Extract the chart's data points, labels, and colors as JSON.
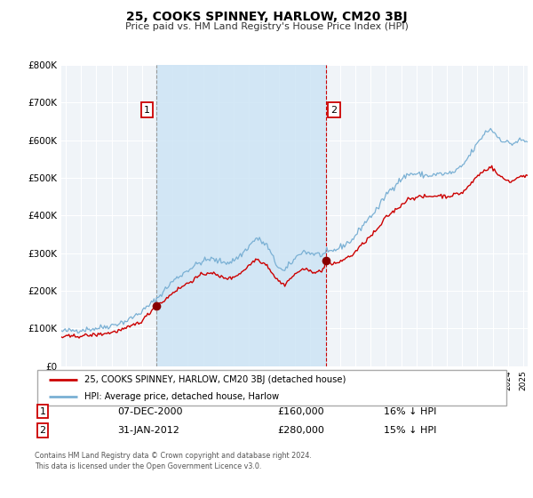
{
  "title": "25, COOKS SPINNEY, HARLOW, CM20 3BJ",
  "subtitle": "Price paid vs. HM Land Registry's House Price Index (HPI)",
  "xlim": [
    1994.7,
    2025.3
  ],
  "ylim": [
    0,
    800000
  ],
  "yticks": [
    0,
    100000,
    200000,
    300000,
    400000,
    500000,
    600000,
    700000,
    800000
  ],
  "ytick_labels": [
    "£0",
    "£100K",
    "£200K",
    "£300K",
    "£400K",
    "£500K",
    "£600K",
    "£700K",
    "£800K"
  ],
  "background_color": "#ffffff",
  "plot_bg_color": "#f0f4f8",
  "grid_color": "#ffffff",
  "hpi_color": "#7ab0d4",
  "price_color": "#cc0000",
  "sale1_date": 2000.92,
  "sale1_price": 160000,
  "sale1_label": "1",
  "sale2_date": 2012.08,
  "sale2_price": 280000,
  "sale2_label": "2",
  "shaded_x_start": 2000.92,
  "shaded_x_end": 2012.08,
  "vline1_x": 2000.92,
  "vline2_x": 2012.08,
  "legend_line1": "25, COOKS SPINNEY, HARLOW, CM20 3BJ (detached house)",
  "legend_line2": "HPI: Average price, detached house, Harlow",
  "table_row1_num": "1",
  "table_row1_date": "07-DEC-2000",
  "table_row1_price": "£160,000",
  "table_row1_hpi": "16% ↓ HPI",
  "table_row2_num": "2",
  "table_row2_date": "31-JAN-2012",
  "table_row2_price": "£280,000",
  "table_row2_hpi": "15% ↓ HPI",
  "footnote1": "Contains HM Land Registry data © Crown copyright and database right 2024.",
  "footnote2": "This data is licensed under the Open Government Licence v3.0."
}
